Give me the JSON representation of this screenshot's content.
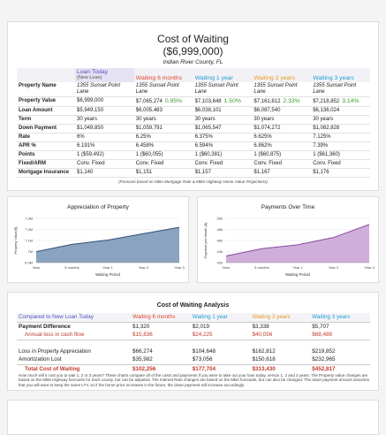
{
  "header": {
    "title": "Cost of Waiting",
    "price": "($6,999,000)",
    "location": "Indian River County, FL"
  },
  "comparison_table": {
    "columns": [
      "Loan Today",
      "Waiting 6 months",
      "Waiting 1 year",
      "Waiting 2 years",
      "Waiting 3 years"
    ],
    "new_loan_note": "(New Loan)",
    "rows": [
      {
        "label": "Property Name",
        "cells": [
          "1355 Sunset Point Lane",
          "1355 Sunset Point Lane",
          "1355 Sunset Point Lane",
          "1355 Sunset Point Lane",
          "1355 Sunset Point Lane"
        ]
      },
      {
        "label": "Property Value",
        "cells": [
          "$6,999,000",
          "$7,065,274",
          "$7,103,648",
          "$7,161,812",
          "$7,218,852"
        ],
        "changes": [
          "0.95%",
          "1.50%",
          "2.33%",
          "3.14%"
        ]
      },
      {
        "label": "Loan Amount",
        "cells": [
          "$5,949,150",
          "$6,005,483",
          "$6,038,101",
          "$6,087,540",
          "$6,136,024"
        ]
      },
      {
        "label": "Term",
        "cells": [
          "30 years",
          "30 years",
          "30 years",
          "30 years",
          "30 years"
        ]
      },
      {
        "label": "Down Payment",
        "cells": [
          "$1,049,850",
          "$1,059,791",
          "$1,065,547",
          "$1,074,272",
          "$1,082,828"
        ]
      },
      {
        "label": "Rate",
        "cells": [
          "6%",
          "6.25%",
          "6.375%",
          "6.625%",
          "7.125%"
        ]
      },
      {
        "label": "APR %",
        "cells": [
          "6.191%",
          "6.458%",
          "6.594%",
          "6.862%",
          "7.39%"
        ]
      },
      {
        "label": "Points",
        "cells": [
          "1 ($59,492)",
          "1 ($60,055)",
          "1 ($60,381)",
          "1 ($60,875)",
          "1 ($61,360)"
        ]
      },
      {
        "label": "Fixed/ARM",
        "cells": [
          "Conv. Fixed",
          "Conv. Fixed",
          "Conv. Fixed",
          "Conv. Fixed",
          "Conv. Fixed"
        ]
      },
      {
        "label": "Mortgage Insurance",
        "cells": [
          "$1,140",
          "$1,151",
          "$1,157",
          "$1,167",
          "$1,176"
        ]
      }
    ],
    "footnote": "(Forecast based on MBA Mortgage Rate & MBS Highway Home Value Projections)"
  },
  "chart_data": [
    {
      "type": "area",
      "title": "Appreciation of Property",
      "categories": [
        "Now",
        "6 months",
        "Year 1",
        "Year 2",
        "Year 3"
      ],
      "x_label": "Waiting Period",
      "y_label": "Property Value($)",
      "values": [
        6999000,
        7065274,
        7103648,
        7161812,
        7218852
      ],
      "color": "#2f4f75",
      "fill": "#8aa3bf",
      "ylim": [
        6900000,
        7300000
      ],
      "yticks": [
        {
          "value": 6900000,
          "label": "6.9M"
        },
        {
          "value": 7000000,
          "label": "7M"
        },
        {
          "value": 7100000,
          "label": "7.1M"
        },
        {
          "value": 7200000,
          "label": "7.2M"
        },
        {
          "value": 7300000,
          "label": "7.3M"
        }
      ],
      "grid": true
    },
    {
      "type": "area",
      "title": "Payments Over Time",
      "categories": [
        "Now",
        "6 months",
        "Year 1",
        "Year 2",
        "Year 3"
      ],
      "x_label": "Waiting Period",
      "y_label": "Payment per Month ($)",
      "values": [
        43200,
        44520,
        45220,
        46540,
        48900
      ],
      "color": "#8a4aa0",
      "fill": "#cfaedc",
      "ylim": [
        42000,
        50000
      ],
      "yticks": [
        {
          "value": 42000,
          "label": "42k"
        },
        {
          "value": 44000,
          "label": "44k"
        },
        {
          "value": 46000,
          "label": "46k"
        },
        {
          "value": 48000,
          "label": "48k"
        },
        {
          "value": 50000,
          "label": "50k"
        }
      ],
      "grid": true
    }
  ],
  "analysis": {
    "title": "Cost of Waiting Analysis",
    "columns": [
      "Compared to New Loan Today",
      "Waiting 6 months",
      "Waiting 1 year",
      "Waiting 2 years",
      "Waiting 3 years"
    ],
    "rows": [
      {
        "label": "Payment Difference",
        "values": [
          "$1,320",
          "$2,019",
          "$3,338",
          "$5,707"
        ]
      },
      {
        "label": "Annual loss in cash flow",
        "values": [
          "$15,836",
          "$24,225",
          "$40,056",
          "$68,488"
        ]
      },
      {
        "label": "Loss in Property Appreciation",
        "values": [
          "$66,274",
          "$104,648",
          "$162,812",
          "$219,852"
        ]
      },
      {
        "label": "Amortization Lost",
        "values": [
          "$35,982",
          "$73,056",
          "$150,618",
          "$232,965"
        ]
      },
      {
        "label": "Total Cost of Waiting",
        "values": [
          "$102,256",
          "$177,704",
          "$313,430",
          "$452,817"
        ]
      }
    ],
    "note": "How much will it cost you to wait 1, 2 or 3 years? These charts compare all of the costs and payments if you were to take out your loan today, versus 1, 2 and 3 years. The Property value changes are based on the MBS Highway forecasts for each county, but can be adjusted. The Interest Rate changes are based on the MBA forecasts, but can also be changed. The down payment amount assumes that you will want to keep the same LTV, so if the home price increases in the future, the down payment will increase accordingly."
  }
}
